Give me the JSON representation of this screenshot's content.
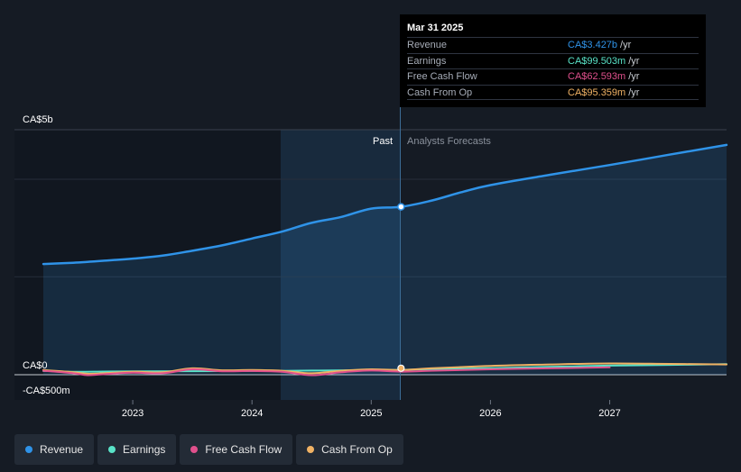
{
  "colors": {
    "revenue": "#2f93e8",
    "earnings": "#59e3c8",
    "free_cash_flow": "#e0508c",
    "cash_from_op": "#f0b264"
  },
  "tooltip": {
    "date": "Mar 31 2025",
    "rows": [
      {
        "label": "Revenue",
        "value": "CA$3.427b",
        "unit": "/yr",
        "color": "#2f93e8"
      },
      {
        "label": "Earnings",
        "value": "CA$99.503m",
        "unit": "/yr",
        "color": "#59e3c8"
      },
      {
        "label": "Free Cash Flow",
        "value": "CA$62.593m",
        "unit": "/yr",
        "color": "#e0508c"
      },
      {
        "label": "Cash From Op",
        "value": "CA$95.359m",
        "unit": "/yr",
        "color": "#f0b264"
      }
    ]
  },
  "legend": [
    {
      "label": "Revenue",
      "color": "#2f93e8"
    },
    {
      "label": "Earnings",
      "color": "#59e3c8"
    },
    {
      "label": "Free Cash Flow",
      "color": "#e0508c"
    },
    {
      "label": "Cash From Op",
      "color": "#f0b264"
    }
  ],
  "chart_data": {
    "type": "line",
    "y_tick_labels": [
      "CA$5b",
      "CA$0",
      "-CA$500m"
    ],
    "ylim": [
      -500,
      5000
    ],
    "y_unit": "CA$ millions",
    "x_tick_labels": [
      "2023",
      "2024",
      "2025",
      "2026",
      "2027"
    ],
    "xlim": [
      2022.25,
      2027.98
    ],
    "past_label": "Past",
    "forecast_label": "Analysts Forecasts",
    "divider_x": 2025.25,
    "series": [
      {
        "name": "Revenue",
        "x": [
          2022.25,
          2022.5,
          2022.75,
          2023.0,
          2023.25,
          2023.5,
          2023.75,
          2024.0,
          2024.25,
          2024.5,
          2024.75,
          2025.0,
          2025.25,
          2025.5,
          2025.75,
          2026.0,
          2026.5,
          2027.0,
          2027.5,
          2027.98
        ],
        "y": [
          2260,
          2285,
          2325,
          2370,
          2430,
          2530,
          2640,
          2780,
          2920,
          3100,
          3220,
          3390,
          3427,
          3550,
          3720,
          3870,
          4080,
          4280,
          4490,
          4690
        ]
      },
      {
        "name": "Earnings",
        "x": [
          2022.25,
          2022.5,
          2022.75,
          2023.0,
          2023.5,
          2024.0,
          2024.5,
          2025.0,
          2025.25,
          2025.5,
          2026.0,
          2026.5,
          2027.0,
          2027.5,
          2027.98
        ],
        "y": [
          75,
          60,
          65,
          70,
          72,
          75,
          85,
          95,
          99.5,
          112,
          135,
          160,
          185,
          200,
          215
        ]
      },
      {
        "name": "Free Cash Flow",
        "x": [
          2022.25,
          2022.5,
          2022.62,
          2022.75,
          2023.0,
          2023.25,
          2023.5,
          2023.75,
          2024.0,
          2024.25,
          2024.5,
          2024.75,
          2025.0,
          2025.25,
          2025.5,
          2026.0,
          2026.5,
          2027.0
        ],
        "y": [
          80,
          30,
          -10,
          10,
          40,
          30,
          110,
          70,
          75,
          60,
          -10,
          50,
          85,
          62.6,
          80,
          110,
          130,
          150
        ]
      },
      {
        "name": "Cash From Op",
        "x": [
          2022.25,
          2022.5,
          2022.62,
          2022.75,
          2023.0,
          2023.25,
          2023.5,
          2023.75,
          2024.0,
          2024.25,
          2024.5,
          2024.75,
          2025.0,
          2025.25,
          2025.5,
          2026.0,
          2026.5,
          2027.0,
          2027.5,
          2027.98
        ],
        "y": [
          95,
          50,
          20,
          30,
          60,
          50,
          130,
          90,
          95,
          80,
          30,
          80,
          110,
          95.4,
          130,
          180,
          210,
          230,
          220,
          210
        ]
      }
    ]
  }
}
